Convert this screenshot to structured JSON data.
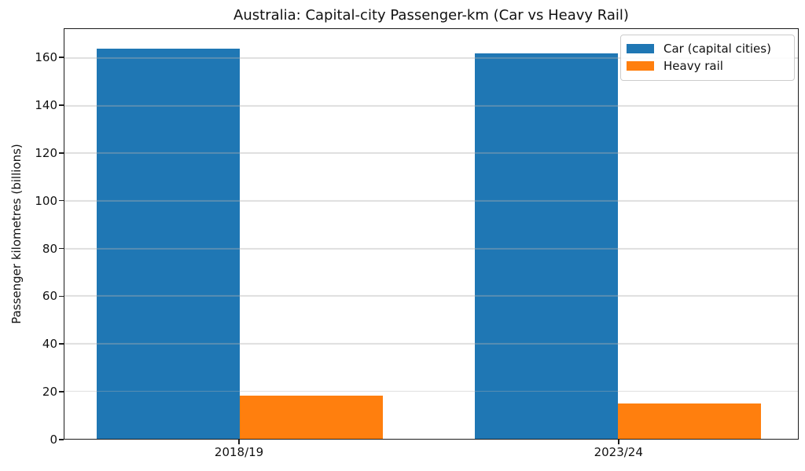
{
  "figure": {
    "background": "#ffffff"
  },
  "chart_data": {
    "type": "bar",
    "title": "Australia: Capital-city Passenger-km (Car vs Heavy Rail)",
    "xlabel": "",
    "ylabel": "Passenger kilometres (billions)",
    "categories": [
      "2018/19",
      "2023/24"
    ],
    "series": [
      {
        "name": "Car (capital cities)",
        "color": "#1f77b4",
        "values": [
          164,
          162
        ]
      },
      {
        "name": "Heavy rail",
        "color": "#ff7f0e",
        "values": [
          18,
          15
        ]
      }
    ],
    "ylim": [
      0,
      172.2
    ],
    "yticks": [
      0,
      20,
      40,
      60,
      80,
      100,
      120,
      140,
      160
    ],
    "grid": "horizontal",
    "gridline_color": "#e6e6e6",
    "axis_color": "#1c1c1c",
    "legend": {
      "position": "upper right",
      "border_color": "#cccccc",
      "background": "#ffffff"
    },
    "layout": {
      "group_centers_frac": [
        0.2386,
        0.7548
      ],
      "bar_width_frac": 0.195
    }
  }
}
